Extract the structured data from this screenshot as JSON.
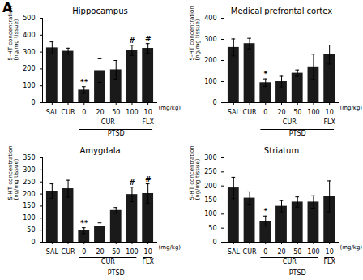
{
  "chart_data": [
    {
      "type": "bar",
      "title": "Hippocampus",
      "ylabel": "5-HT concentration\n(ng/mg tissue)",
      "categories": [
        "SAL",
        "CUR",
        "0",
        "20",
        "50",
        "100",
        "10"
      ],
      "values": [
        325,
        305,
        75,
        190,
        195,
        310,
        322
      ],
      "errors": [
        35,
        18,
        20,
        70,
        55,
        30,
        28
      ],
      "significance": [
        null,
        null,
        "**",
        null,
        null,
        "#",
        "#"
      ],
      "color": "#1a1a1a",
      "ylim": [
        0,
        500
      ],
      "yticks": [
        0,
        100,
        200,
        300,
        400,
        500
      ],
      "annotations": [
        "(mg/kg)",
        "CUR",
        "FLX",
        "PTSD"
      ]
    },
    {
      "type": "bar",
      "title": "Medical prefrontal cortex",
      "ylabel": "5-HT concentration\n(ng/mg tissue)",
      "categories": [
        "SAL",
        "CUR",
        "0",
        "20",
        "50",
        "100",
        "10"
      ],
      "values": [
        262,
        280,
        95,
        100,
        140,
        170,
        228
      ],
      "errors": [
        40,
        25,
        18,
        25,
        15,
        60,
        45
      ],
      "significance": [
        null,
        null,
        "*",
        null,
        null,
        null,
        null
      ],
      "color": "#1a1a1a",
      "ylim": [
        0,
        400
      ],
      "yticks": [
        0,
        100,
        200,
        300,
        400
      ],
      "annotations": [
        "(mg/kg)",
        "CUR",
        "FLX",
        "PTSD"
      ]
    },
    {
      "type": "bar",
      "title": "Amygdala",
      "ylabel": "5-HT concentration\n(ng/mg tissue)",
      "categories": [
        "SAL",
        "CUR",
        "0",
        "20",
        "50",
        "100",
        "10"
      ],
      "values": [
        212,
        222,
        48,
        65,
        132,
        198,
        202
      ],
      "errors": [
        30,
        35,
        12,
        15,
        12,
        30,
        40
      ],
      "significance": [
        null,
        null,
        "**",
        null,
        null,
        "#",
        "#"
      ],
      "color": "#1a1a1a",
      "ylim": [
        0,
        350
      ],
      "yticks": [
        0,
        50,
        100,
        150,
        200,
        250,
        300,
        350
      ],
      "annotations": [
        "(mg/kg)",
        "CUR",
        "FLX",
        "PTSD"
      ]
    },
    {
      "type": "bar",
      "title": "Striatum",
      "ylabel": "5-HT concentration\n(ng/mg tissue)",
      "categories": [
        "SAL",
        "CUR",
        "0",
        "20",
        "50",
        "100",
        "10"
      ],
      "values": [
        193,
        157,
        75,
        128,
        143,
        143,
        163
      ],
      "errors": [
        38,
        22,
        18,
        20,
        18,
        22,
        55
      ],
      "significance": [
        null,
        null,
        "*",
        null,
        null,
        null,
        null
      ],
      "color": "#1a1a1a",
      "ylim": [
        0,
        300
      ],
      "yticks": [
        0,
        50,
        100,
        150,
        200,
        250,
        300
      ],
      "annotations": [
        "(mg/kg)",
        "CUR",
        "FLX",
        "PTSD"
      ]
    }
  ],
  "annotations": [
    "A"
  ]
}
